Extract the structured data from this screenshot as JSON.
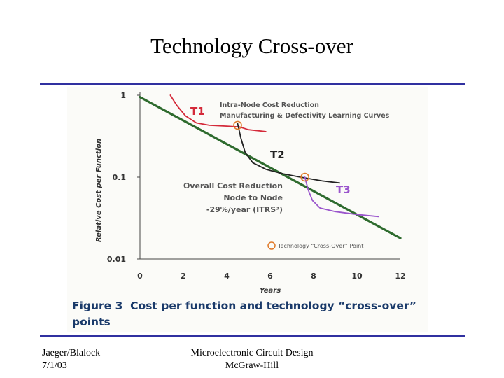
{
  "slide": {
    "title": "Technology Cross-over"
  },
  "figure": {
    "caption_number": "Figure 3",
    "caption_text_line1": "Cost per function and technology “cross-over”",
    "caption_text_line2": "points"
  },
  "footer": {
    "author": "Jaeger/Blalock",
    "date": "7/1/03",
    "book_title": "Microelectronic Circuit Design",
    "publisher": "McGraw-Hill"
  },
  "colors": {
    "rule": "#3030a0",
    "overall_line": "#2e6b2e",
    "t1": "#d42a3a",
    "t2": "#222222",
    "t3": "#9a55cc",
    "crossover_marker": "#e07a2a",
    "annotation_text": "#555555"
  },
  "chart_data": {
    "type": "line",
    "xlabel": "Years",
    "ylabel": "Relative Cost per Function",
    "xlim": [
      0,
      12
    ],
    "ylim": [
      0.01,
      1
    ],
    "y_scale": "log",
    "x_ticks": [
      0,
      2,
      4,
      6,
      8,
      10,
      12
    ],
    "y_ticks": [
      {
        "value": 1,
        "label": "1"
      },
      {
        "value": 0.1,
        "label": "0.1"
      },
      {
        "value": 0.01,
        "label": "0.01"
      }
    ],
    "series": [
      {
        "name": "",
        "role": "overall",
        "x": [
          0,
          12
        ],
        "y": [
          0.95,
          0.018
        ]
      },
      {
        "name": "T1",
        "role": "t1",
        "x": [
          1.4,
          1.7,
          2.1,
          2.6,
          3.2,
          4.0,
          4.6,
          5.0,
          5.8
        ],
        "y": [
          1.0,
          0.75,
          0.56,
          0.46,
          0.43,
          0.42,
          0.41,
          0.38,
          0.36
        ]
      },
      {
        "name": "T2",
        "role": "t2",
        "x": [
          4.5,
          4.65,
          4.85,
          5.2,
          5.8,
          6.6,
          7.4,
          8.4,
          9.2
        ],
        "y": [
          0.45,
          0.3,
          0.2,
          0.15,
          0.125,
          0.11,
          0.1,
          0.09,
          0.085
        ]
      },
      {
        "name": "T3",
        "role": "t3",
        "x": [
          7.6,
          7.75,
          7.95,
          8.3,
          9.0,
          10.0,
          11.0
        ],
        "y": [
          0.1,
          0.07,
          0.052,
          0.042,
          0.038,
          0.035,
          0.033
        ]
      }
    ],
    "crossover_points": [
      {
        "x": 4.5,
        "y": 0.43
      },
      {
        "x": 7.6,
        "y": 0.1
      }
    ],
    "annotations": {
      "intra_node_line1": "Intra-Node Cost Reduction",
      "intra_node_line2": "Manufacturing & Defectivity Learning Curves",
      "overall_line1": "Overall Cost Reduction",
      "overall_line2": "Node to Node",
      "overall_line3": "-29%/year (ITRS³)",
      "legend_marker": "Technology “Cross-Over” Point"
    },
    "legend_position": "bottom-right"
  }
}
